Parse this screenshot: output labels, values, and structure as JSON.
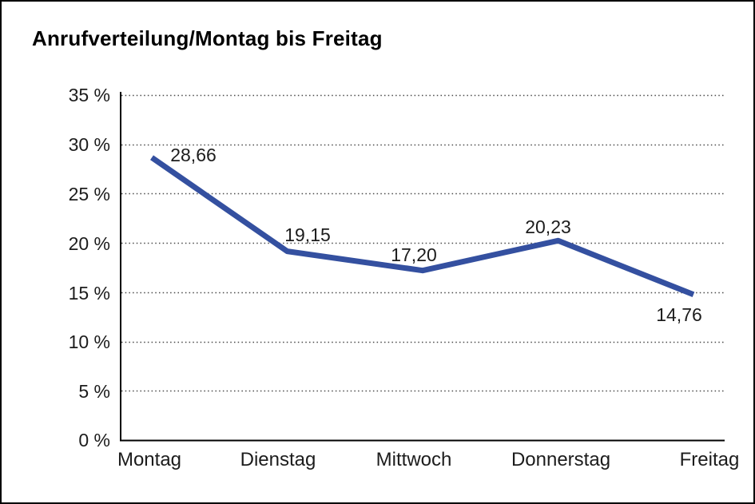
{
  "window": {
    "background_color": "#ffffff",
    "border_color": "#000000"
  },
  "chart_data": {
    "type": "line",
    "title": "Anrufverteilung/Montag bis Freitag",
    "categories": [
      "Montag",
      "Dienstag",
      "Mittwoch",
      "Donnerstag",
      "Freitag"
    ],
    "series": [
      {
        "name": "Anrufverteilung",
        "values": [
          28.66,
          19.15,
          17.2,
          20.23,
          14.76
        ],
        "data_labels": [
          "28,66",
          "19,15",
          "17,20",
          "20,23",
          "14,76"
        ]
      }
    ],
    "xlabel": "",
    "ylabel": "",
    "ylim": [
      0,
      35
    ],
    "y_step": 5,
    "y_ticks": [
      "35 %",
      "30 %",
      "25 %",
      "20 %",
      "15 %",
      "10 %",
      "5 %",
      "0 %"
    ],
    "grid": "horizontal dotted",
    "legend_position": "none",
    "line_color": "#3450a0",
    "grid_color": "#4a4a4a",
    "axis_color": "#000000",
    "label_color": "#1c1c1c"
  }
}
